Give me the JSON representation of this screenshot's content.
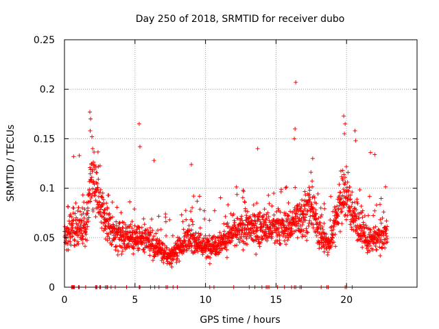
{
  "chart_data": {
    "type": "scatter",
    "title": "Day 250 of 2018, SRMTID for receiver dubo",
    "xlabel": "GPS time / hours",
    "ylabel": "SRMTID / TECUs",
    "xlim": [
      0,
      25
    ],
    "ylim": [
      0,
      0.25
    ],
    "x_ticks": [
      0,
      5,
      10,
      15,
      20
    ],
    "x_tick_labels": [
      "0",
      "5",
      "10",
      "15",
      "20"
    ],
    "y_ticks": [
      0,
      0.05,
      0.1,
      0.15,
      0.2,
      0.25
    ],
    "y_tick_labels": [
      "0",
      "0.05",
      "0.1",
      "0.15",
      "0.2",
      "0.25"
    ],
    "grid": true,
    "marker": "+",
    "color": "#ff0000",
    "x_range_hours": [
      0,
      22.9
    ],
    "trend": [
      [
        0.0,
        0.05
      ],
      [
        0.5,
        0.058
      ],
      [
        1.0,
        0.062
      ],
      [
        1.5,
        0.058
      ],
      [
        1.9,
        0.115
      ],
      [
        2.3,
        0.095
      ],
      [
        2.7,
        0.075
      ],
      [
        3.2,
        0.058
      ],
      [
        4.0,
        0.052
      ],
      [
        5.0,
        0.05
      ],
      [
        6.0,
        0.045
      ],
      [
        7.0,
        0.035
      ],
      [
        7.5,
        0.03
      ],
      [
        8.0,
        0.04
      ],
      [
        9.0,
        0.05
      ],
      [
        10.0,
        0.04
      ],
      [
        11.0,
        0.045
      ],
      [
        12.0,
        0.055
      ],
      [
        13.0,
        0.06
      ],
      [
        14.0,
        0.06
      ],
      [
        15.0,
        0.058
      ],
      [
        16.0,
        0.062
      ],
      [
        16.5,
        0.07
      ],
      [
        17.0,
        0.075
      ],
      [
        17.5,
        0.078
      ],
      [
        18.0,
        0.06
      ],
      [
        18.7,
        0.04
      ],
      [
        19.0,
        0.055
      ],
      [
        19.5,
        0.085
      ],
      [
        20.0,
        0.095
      ],
      [
        20.5,
        0.07
      ],
      [
        21.0,
        0.06
      ],
      [
        21.5,
        0.045
      ],
      [
        22.0,
        0.05
      ],
      [
        22.9,
        0.055
      ]
    ],
    "highlights": [
      {
        "x": 1.8,
        "y": 0.177
      },
      {
        "x": 1.85,
        "y": 0.17
      },
      {
        "x": 1.82,
        "y": 0.158
      },
      {
        "x": 1.95,
        "y": 0.152
      },
      {
        "x": 2.0,
        "y": 0.14
      },
      {
        "x": 5.3,
        "y": 0.165
      },
      {
        "x": 5.35,
        "y": 0.142
      },
      {
        "x": 6.35,
        "y": 0.128
      },
      {
        "x": 9.0,
        "y": 0.124
      },
      {
        "x": 13.7,
        "y": 0.14
      },
      {
        "x": 16.4,
        "y": 0.207
      },
      {
        "x": 16.35,
        "y": 0.16
      },
      {
        "x": 16.3,
        "y": 0.15
      },
      {
        "x": 19.8,
        "y": 0.173
      },
      {
        "x": 19.9,
        "y": 0.165
      },
      {
        "x": 19.85,
        "y": 0.155
      },
      {
        "x": 20.6,
        "y": 0.158
      },
      {
        "x": 20.65,
        "y": 0.148
      },
      {
        "x": 21.7,
        "y": 0.136
      },
      {
        "x": 22.0,
        "y": 0.134
      },
      {
        "x": 1.05,
        "y": 0.133
      },
      {
        "x": 0.65,
        "y": 0.132
      },
      {
        "x": 2.4,
        "y": 0.122
      },
      {
        "x": 17.6,
        "y": 0.13
      }
    ],
    "zero_points_x": [
      0.5,
      0.55,
      0.6,
      0.65,
      0.7,
      1.0,
      1.05,
      1.5,
      2.2,
      2.25,
      2.3,
      2.5,
      2.55,
      2.9,
      3.0,
      3.05,
      3.3,
      3.6,
      4.4,
      5.3,
      5.35,
      6.1,
      6.4,
      6.7,
      7.2,
      7.3,
      7.7,
      8.0,
      10.3,
      10.6,
      12.0,
      13.1,
      13.5,
      14.0,
      14.3,
      14.4,
      14.5,
      15.1,
      15.6,
      16.1,
      16.3,
      16.4,
      16.7,
      16.8,
      18.2,
      18.6,
      18.7,
      19.9,
      20.0,
      20.4
    ]
  }
}
